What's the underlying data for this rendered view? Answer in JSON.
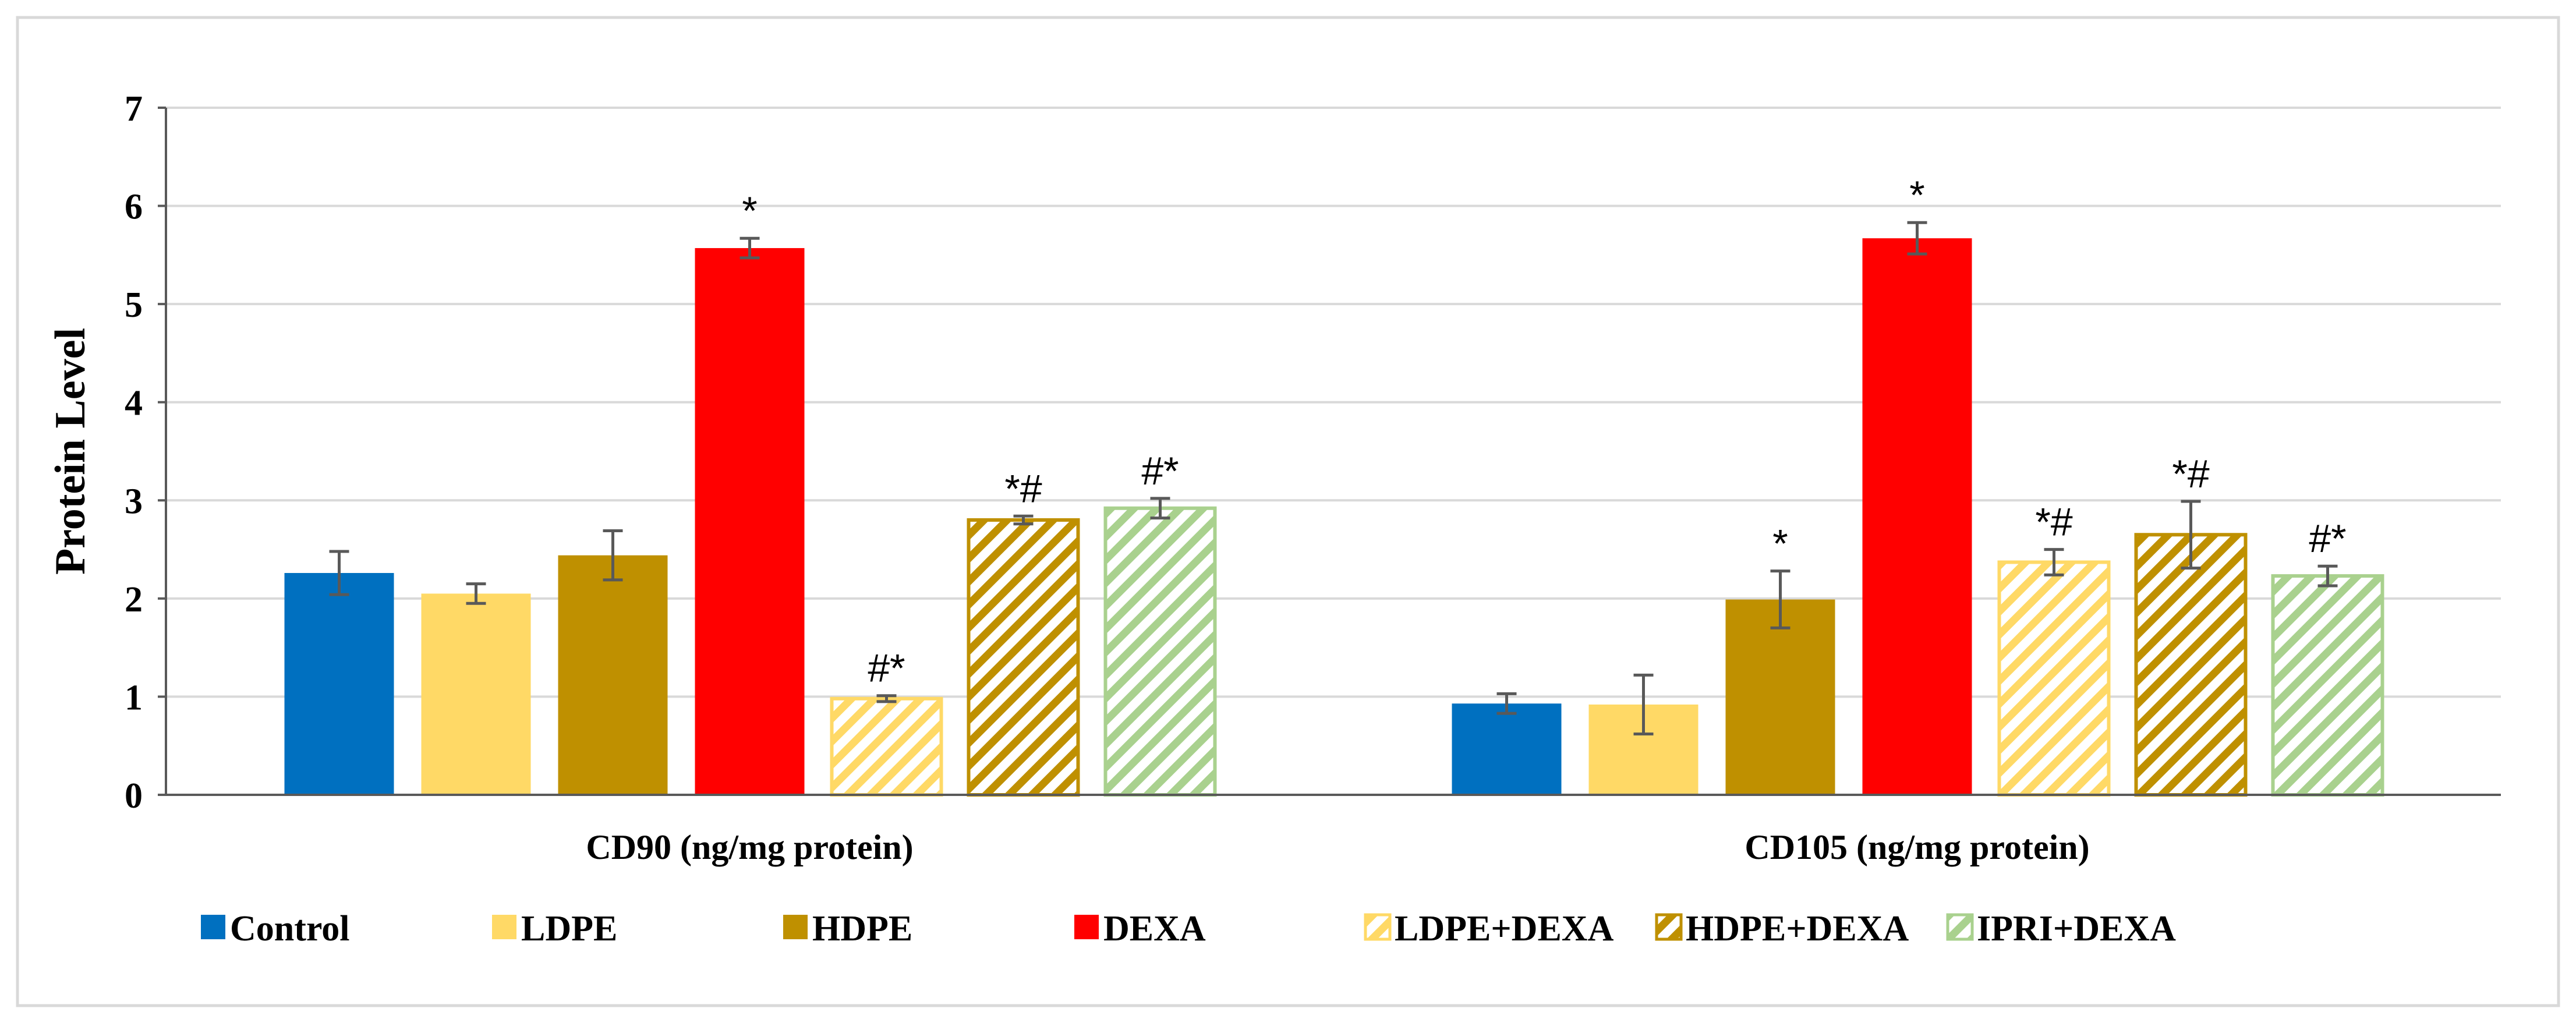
{
  "chart_data": {
    "type": "bar",
    "ylabel": "Protein Level",
    "ylim": [
      0,
      7
    ],
    "yticks": [
      0,
      1,
      2,
      3,
      4,
      5,
      6,
      7
    ],
    "grid": true,
    "legend_position": "bottom",
    "categories": [
      "CD90  (ng/mg protein)",
      "CD105 (ng/mg protein)"
    ],
    "series": [
      {
        "name": "Control",
        "color": "#0070c0",
        "pattern": "solid",
        "values": [
          2.26,
          0.93
        ],
        "errors": [
          0.22,
          0.1
        ],
        "annotations": [
          "",
          ""
        ]
      },
      {
        "name": "LDPE",
        "color": "#ffd966",
        "pattern": "solid",
        "values": [
          2.05,
          0.92
        ],
        "errors": [
          0.1,
          0.3
        ],
        "annotations": [
          "",
          ""
        ]
      },
      {
        "name": "HDPE",
        "color": "#bf9000",
        "pattern": "solid",
        "values": [
          2.44,
          1.99
        ],
        "errors": [
          0.25,
          0.29
        ],
        "annotations": [
          "",
          "*"
        ]
      },
      {
        "name": "DEXA",
        "color": "#ff0000",
        "pattern": "solid",
        "values": [
          5.57,
          5.67
        ],
        "errors": [
          0.1,
          0.16
        ],
        "annotations": [
          "*",
          "*"
        ]
      },
      {
        "name": "LDPE+DEXA",
        "color": "#ffd966",
        "pattern": "hatched",
        "values": [
          0.98,
          2.37
        ],
        "errors": [
          0.03,
          0.13
        ],
        "annotations": [
          "#*",
          "*#"
        ]
      },
      {
        "name": "HDPE+DEXA",
        "color": "#bf9000",
        "pattern": "hatched",
        "values": [
          2.8,
          2.65
        ],
        "errors": [
          0.04,
          0.34
        ],
        "annotations": [
          "*#",
          "*#"
        ]
      },
      {
        "name": "IPRI+DEXA",
        "color": "#a9d18e",
        "pattern": "hatched",
        "values": [
          2.92,
          2.23
        ],
        "errors": [
          0.1,
          0.1
        ],
        "annotations": [
          "#*",
          "#*"
        ]
      }
    ]
  }
}
